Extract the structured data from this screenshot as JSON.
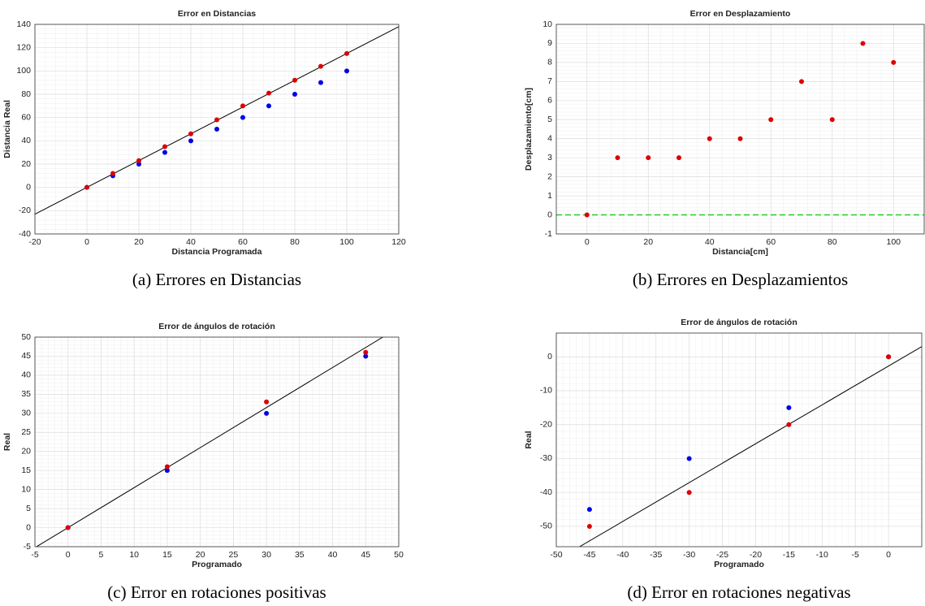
{
  "chart_data": [
    {
      "type": "scatter",
      "title": "Error en Distancias",
      "caption": "(a) Errores en Distancias",
      "xlabel": "Distancia Programada",
      "ylabel": "Distancia Real",
      "xlim": [
        -20,
        120
      ],
      "ylim": [
        -40,
        140
      ],
      "xticks": [
        -20,
        0,
        20,
        40,
        60,
        80,
        100,
        120
      ],
      "yticks": [
        -40,
        -20,
        0,
        20,
        40,
        60,
        80,
        100,
        120,
        140
      ],
      "grid": true,
      "minor_grid": true,
      "series": [
        {
          "type": "line",
          "color": "#000000",
          "x": [
            -20,
            120
          ],
          "values": [
            -23,
            138
          ]
        },
        {
          "type": "scatter",
          "color": "#0000ee",
          "x": [
            0,
            10,
            20,
            30,
            40,
            50,
            60,
            70,
            80,
            90,
            100
          ],
          "values": [
            0,
            10,
            20,
            30,
            40,
            50,
            60,
            70,
            80,
            90,
            100
          ]
        },
        {
          "type": "scatter",
          "color": "#dd0000",
          "x": [
            0,
            10,
            20,
            30,
            40,
            50,
            60,
            70,
            80,
            90,
            100
          ],
          "values": [
            0,
            12,
            23,
            35,
            46,
            58,
            70,
            81,
            92,
            104,
            115
          ]
        }
      ]
    },
    {
      "type": "scatter",
      "title": "Error en Desplazamiento",
      "caption": "(b) Errores en Desplazamientos",
      "xlabel": "Distancia[cm]",
      "ylabel": "Desplazamiento[cm]",
      "xlim": [
        -10,
        110
      ],
      "ylim": [
        -1,
        10
      ],
      "xticks": [
        0,
        20,
        40,
        60,
        80,
        100
      ],
      "yticks": [
        -1,
        0,
        1,
        2,
        3,
        4,
        5,
        6,
        7,
        8,
        9,
        10
      ],
      "grid": true,
      "minor_grid": true,
      "series": [
        {
          "type": "line",
          "color": "#22cc22",
          "dash": true,
          "x": [
            -10,
            110
          ],
          "values": [
            0,
            0
          ]
        },
        {
          "type": "scatter",
          "color": "#dd0000",
          "x": [
            0,
            10,
            20,
            30,
            40,
            50,
            60,
            70,
            80,
            90,
            100
          ],
          "values": [
            0,
            3,
            3,
            3,
            4,
            4,
            5,
            7,
            5,
            9,
            8
          ]
        }
      ]
    },
    {
      "type": "scatter",
      "title": "Error de ángulos de rotación",
      "caption": "(c) Error en rotaciones positivas",
      "xlabel": "Programado",
      "ylabel": "Real",
      "xlim": [
        -5,
        50
      ],
      "ylim": [
        -5,
        50
      ],
      "xticks": [
        -5,
        0,
        5,
        10,
        15,
        20,
        25,
        30,
        35,
        40,
        45,
        50
      ],
      "yticks": [
        -5,
        0,
        5,
        10,
        15,
        20,
        25,
        30,
        35,
        40,
        45,
        50
      ],
      "grid": true,
      "minor_grid": true,
      "series": [
        {
          "type": "line",
          "color": "#000000",
          "x": [
            -5,
            47.6
          ],
          "values": [
            -5.25,
            50
          ]
        },
        {
          "type": "scatter",
          "color": "#0000ee",
          "x": [
            0,
            15,
            30,
            45
          ],
          "values": [
            0,
            15,
            30,
            45
          ]
        },
        {
          "type": "scatter",
          "color": "#dd0000",
          "x": [
            0,
            15,
            30,
            45
          ],
          "values": [
            0,
            16,
            33,
            46
          ]
        }
      ]
    },
    {
      "type": "scatter",
      "title": "Error de ángulos de rotación",
      "caption": "(d) Error en rotaciones negativas",
      "xlabel": "Programado",
      "ylabel": "Real",
      "xlim": [
        -50,
        5
      ],
      "ylim": [
        -56,
        7
      ],
      "xticks": [
        -50,
        -45,
        -40,
        -35,
        -30,
        -25,
        -20,
        -15,
        -10,
        -5,
        0
      ],
      "yticks": [
        -50,
        -40,
        -30,
        -20,
        -10,
        0
      ],
      "grid": true,
      "minor_grid": true,
      "series": [
        {
          "type": "line",
          "color": "#000000",
          "x": [
            -46.5,
            5
          ],
          "values": [
            -56,
            3
          ]
        },
        {
          "type": "scatter",
          "color": "#0000ee",
          "x": [
            -45,
            -30,
            -15,
            0
          ],
          "values": [
            -45,
            -30,
            -15,
            0
          ]
        },
        {
          "type": "scatter",
          "color": "#dd0000",
          "x": [
            -45,
            -30,
            -15,
            0
          ],
          "values": [
            -50,
            -40,
            -20,
            0
          ]
        }
      ]
    }
  ]
}
